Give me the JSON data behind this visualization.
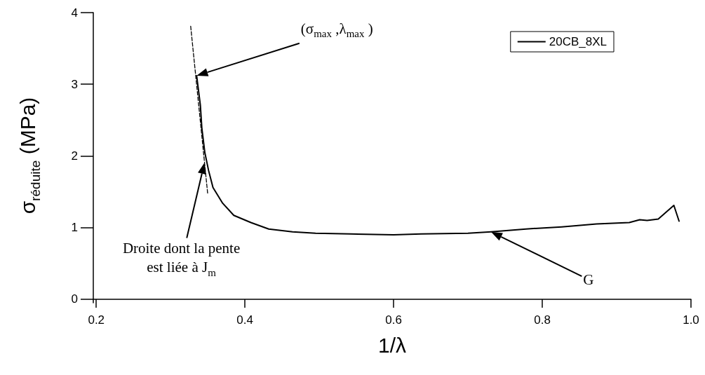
{
  "chart_data": {
    "type": "line",
    "xlabel": "1/λ",
    "ylabel": "σ$_{réduite}$ (MPa)",
    "xlim": [
      0.196,
      1.0
    ],
    "ylim": [
      -0.05,
      4
    ],
    "xticks": [
      0.2,
      0.4,
      0.6,
      0.8,
      {
        "value": 1.0,
        "label": "1.0"
      }
    ],
    "yticks": [
      0,
      1,
      2,
      3,
      4
    ],
    "grid": false,
    "legend": "top right",
    "marker": "none",
    "series": [
      {
        "name": "20CB_8XL",
        "color": "#000000",
        "line_style": "solid",
        "x": [
          0.335,
          0.34,
          0.342,
          0.346,
          0.351,
          0.357,
          0.37,
          0.385,
          0.408,
          0.432,
          0.464,
          0.495,
          0.542,
          0.6,
          0.637,
          0.7,
          0.731,
          0.778,
          0.826,
          0.873,
          0.917,
          0.931,
          0.941,
          0.956,
          0.967,
          0.977,
          0.984
        ],
        "values": [
          3.12,
          2.71,
          2.39,
          2.05,
          1.8,
          1.56,
          1.34,
          1.17,
          1.07,
          0.98,
          0.94,
          0.92,
          0.91,
          0.9,
          0.91,
          0.92,
          0.94,
          0.98,
          1.01,
          1.05,
          1.07,
          1.11,
          1.1,
          1.12,
          1.22,
          1.31,
          1.09
        ]
      },
      {
        "color": "#000000",
        "line_style": "dashed",
        "x": [
          0.327,
          0.35
        ],
        "values": [
          3.81,
          1.46
        ]
      }
    ],
    "annotations": [
      "(σ$_{max}$ ,λ$_{max}$ )",
      "Droite dont la pente est liée à J$_{m}$",
      "G"
    ]
  }
}
